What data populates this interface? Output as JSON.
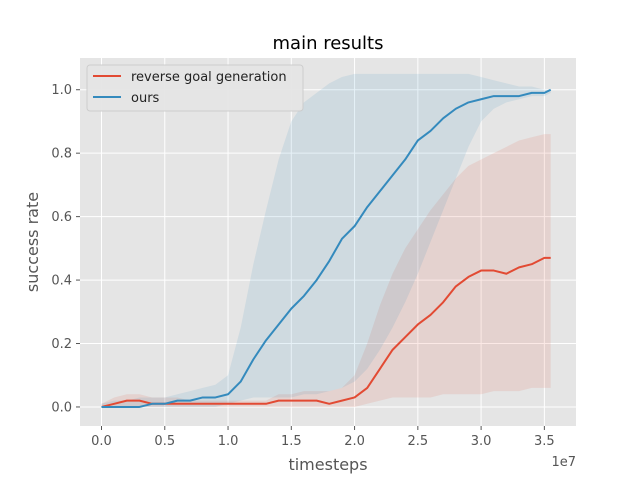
{
  "chart_data": {
    "type": "line",
    "title": "main results",
    "xlabel": "timesteps",
    "ylabel": "success rate",
    "x_offset_label": "1e7",
    "xlim": [
      -0.17,
      3.75
    ],
    "ylim": [
      -0.06,
      1.1
    ],
    "xticks": [
      0.0,
      0.5,
      1.0,
      1.5,
      2.0,
      2.5,
      3.0,
      3.5
    ],
    "xtick_labels": [
      "0.0",
      "0.5",
      "1.0",
      "1.5",
      "2.0",
      "2.5",
      "3.0",
      "3.5"
    ],
    "yticks": [
      0.0,
      0.2,
      0.4,
      0.6,
      0.8,
      1.0
    ],
    "ytick_labels": [
      "0.0",
      "0.2",
      "0.4",
      "0.6",
      "0.8",
      "1.0"
    ],
    "grid": true,
    "legend_position": "top-left",
    "series": [
      {
        "name": "reverse goal generation",
        "color": "#e24a33",
        "x": [
          0.0,
          0.1,
          0.2,
          0.3,
          0.4,
          0.5,
          0.6,
          0.7,
          0.8,
          0.9,
          1.0,
          1.1,
          1.2,
          1.3,
          1.4,
          1.5,
          1.6,
          1.7,
          1.8,
          1.9,
          2.0,
          2.1,
          2.2,
          2.3,
          2.4,
          2.5,
          2.6,
          2.7,
          2.8,
          2.9,
          3.0,
          3.1,
          3.2,
          3.3,
          3.4,
          3.5,
          3.55
        ],
        "y": [
          0.0,
          0.01,
          0.02,
          0.02,
          0.01,
          0.01,
          0.01,
          0.01,
          0.01,
          0.01,
          0.01,
          0.01,
          0.01,
          0.01,
          0.02,
          0.02,
          0.02,
          0.02,
          0.01,
          0.02,
          0.03,
          0.06,
          0.12,
          0.18,
          0.22,
          0.26,
          0.29,
          0.33,
          0.38,
          0.41,
          0.43,
          0.43,
          0.42,
          0.44,
          0.45,
          0.47,
          0.47
        ],
        "band_low": [
          0.0,
          0.0,
          0.0,
          0.0,
          0.0,
          0.0,
          0.0,
          0.0,
          0.0,
          0.0,
          0.0,
          0.0,
          0.0,
          0.0,
          0.0,
          0.0,
          0.0,
          0.0,
          0.0,
          0.0,
          0.0,
          0.01,
          0.02,
          0.03,
          0.03,
          0.03,
          0.03,
          0.04,
          0.04,
          0.04,
          0.04,
          0.05,
          0.05,
          0.05,
          0.06,
          0.06,
          0.06
        ],
        "band_high": [
          0.01,
          0.03,
          0.04,
          0.04,
          0.03,
          0.03,
          0.03,
          0.02,
          0.02,
          0.02,
          0.02,
          0.02,
          0.02,
          0.02,
          0.04,
          0.04,
          0.05,
          0.05,
          0.05,
          0.06,
          0.1,
          0.2,
          0.32,
          0.42,
          0.5,
          0.56,
          0.62,
          0.67,
          0.72,
          0.76,
          0.78,
          0.8,
          0.82,
          0.84,
          0.85,
          0.86,
          0.86
        ]
      },
      {
        "name": "ours",
        "color": "#348abd",
        "x": [
          0.0,
          0.1,
          0.2,
          0.3,
          0.4,
          0.5,
          0.6,
          0.7,
          0.8,
          0.9,
          1.0,
          1.1,
          1.2,
          1.3,
          1.4,
          1.5,
          1.6,
          1.7,
          1.8,
          1.9,
          2.0,
          2.1,
          2.2,
          2.3,
          2.4,
          2.5,
          2.6,
          2.7,
          2.8,
          2.9,
          3.0,
          3.1,
          3.2,
          3.3,
          3.4,
          3.5,
          3.55
        ],
        "y": [
          0.0,
          0.0,
          0.0,
          0.0,
          0.01,
          0.01,
          0.02,
          0.02,
          0.03,
          0.03,
          0.04,
          0.08,
          0.15,
          0.21,
          0.26,
          0.31,
          0.35,
          0.4,
          0.46,
          0.53,
          0.57,
          0.63,
          0.68,
          0.73,
          0.78,
          0.84,
          0.87,
          0.91,
          0.94,
          0.96,
          0.97,
          0.98,
          0.98,
          0.98,
          0.99,
          0.99,
          1.0
        ],
        "band_low": [
          0.0,
          0.0,
          0.0,
          0.0,
          0.0,
          0.0,
          0.0,
          0.0,
          0.0,
          0.0,
          0.01,
          0.02,
          0.03,
          0.03,
          0.03,
          0.03,
          0.04,
          0.04,
          0.05,
          0.06,
          0.08,
          0.12,
          0.18,
          0.25,
          0.33,
          0.42,
          0.52,
          0.62,
          0.72,
          0.82,
          0.9,
          0.94,
          0.96,
          0.97,
          0.98,
          0.98,
          0.99
        ],
        "band_high": [
          0.01,
          0.02,
          0.02,
          0.03,
          0.03,
          0.03,
          0.04,
          0.05,
          0.06,
          0.07,
          0.1,
          0.25,
          0.45,
          0.62,
          0.78,
          0.9,
          0.96,
          0.99,
          1.02,
          1.04,
          1.05,
          1.05,
          1.05,
          1.05,
          1.05,
          1.05,
          1.05,
          1.05,
          1.05,
          1.05,
          1.04,
          1.03,
          1.02,
          1.01,
          1.01,
          1.0,
          1.0
        ]
      }
    ]
  }
}
